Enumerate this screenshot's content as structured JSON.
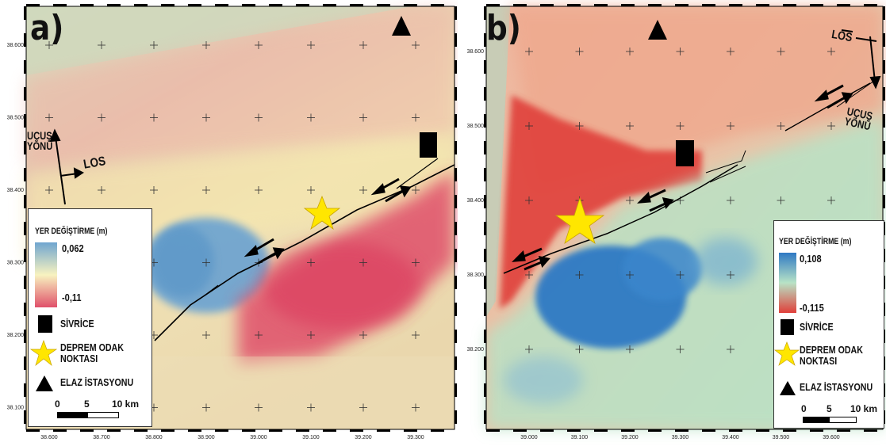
{
  "panels": [
    {
      "letter": "a)",
      "x_ticks": [
        "38.600",
        "38.700",
        "38.800",
        "38.900",
        "39.000",
        "39.100",
        "39.200",
        "39.300"
      ],
      "y_ticks": [
        "38.600",
        "38.500",
        "38.400",
        "38.300",
        "38.200",
        "38.100"
      ],
      "flight_direction": "UÇUŞ\nYÖNÜ",
      "los": "LOS",
      "legend": {
        "title": "YER DEĞİŞTİRME (m)",
        "max": "0,062",
        "min": "-0,11",
        "color_max": "#6fa5d0",
        "color_mid": "#f8f3c0",
        "color_min": "#e0506a"
      },
      "items": {
        "city": "SİVRİCE",
        "epicenter": "DEPREM ODAK\nNOKTASI",
        "station": "ELAZ İSTASYONU"
      },
      "scalebar": [
        "0",
        "5",
        "10 km"
      ]
    },
    {
      "letter": "b)",
      "x_ticks": [
        "39.000",
        "39.100",
        "39.200",
        "39.300",
        "39.400",
        "39.500",
        "39.600"
      ],
      "y_ticks": [
        "38.600",
        "38.500",
        "38.400",
        "38.300",
        "38.200"
      ],
      "flight_direction": "UÇUŞ\nYÖNÜ",
      "los": "LOS",
      "legend": {
        "title": "YER DEĞİŞTİRME (m)",
        "max": "0,108",
        "min": "-0,115",
        "color_max": "#2f79c4",
        "color_mid": "#b8e3c6",
        "color_min": "#e0403a"
      },
      "items": {
        "city": "SİVRİCE",
        "epicenter": "DEPREM ODAK\nNOKTASI",
        "station": "ELAZ İSTASYONU"
      },
      "scalebar": [
        "0",
        "5",
        "10 km"
      ]
    }
  ]
}
